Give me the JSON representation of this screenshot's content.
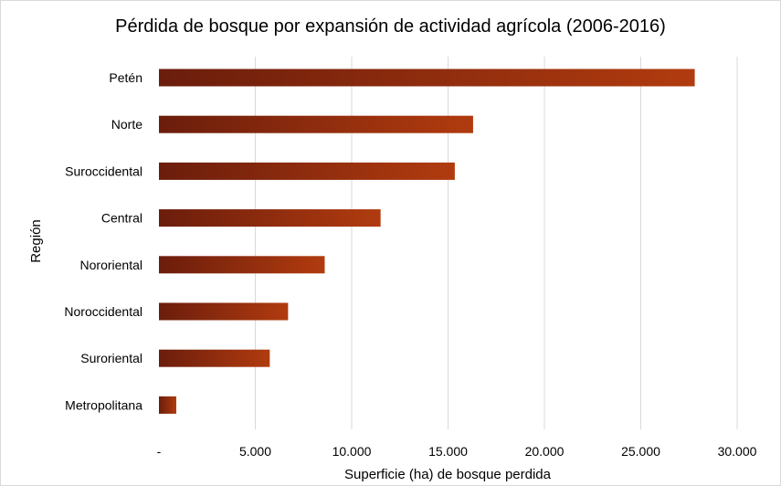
{
  "chart_data": {
    "type": "bar",
    "orientation": "horizontal",
    "title": "Pérdida de bosque por expansión de actividad agrícola (2006-2016)",
    "xlabel": "Superficie (ha) de bosque perdida",
    "ylabel": "Región",
    "categories": [
      "Petén",
      "Norte",
      "Suroccidental",
      "Central",
      "Nororiental",
      "Noroccidental",
      "Suroriental",
      "Metropolitana"
    ],
    "values": [
      27800,
      16300,
      15350,
      11500,
      8600,
      6700,
      5750,
      900
    ],
    "xlim": [
      0,
      30000
    ],
    "x_ticks": [
      0,
      5000,
      10000,
      15000,
      20000,
      25000,
      30000
    ],
    "x_tick_labels": [
      "-",
      "5.000",
      "10.000",
      "15.000",
      "20.000",
      "25.000",
      "30.000"
    ],
    "grid": "vertical",
    "legend": "none",
    "colors": {
      "bar_start": "#6b1d0c",
      "bar_end": "#b13b0f",
      "grid": "#d9d9d9"
    }
  }
}
